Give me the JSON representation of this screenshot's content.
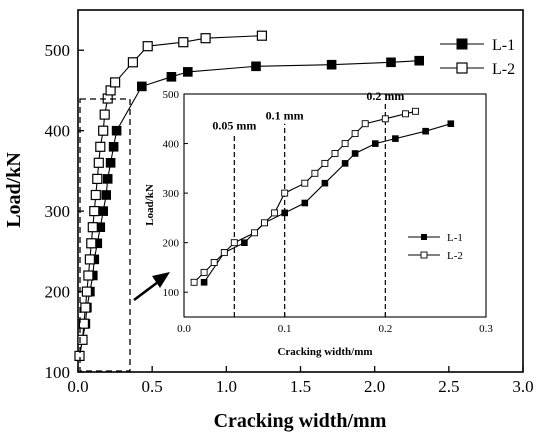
{
  "chart_data": [
    {
      "type": "line",
      "xlabel": "Cracking width/mm",
      "ylabel": "Load/kN",
      "xlim": [
        0.0,
        3.0
      ],
      "ylim": [
        100,
        550
      ],
      "x_ticks": [
        "0.0",
        "0.5",
        "1.0",
        "1.5",
        "2.0",
        "2.5",
        "3.0"
      ],
      "y_ticks": [
        "100",
        "200",
        "300",
        "400",
        "500"
      ],
      "legend_position": "top-right",
      "series": [
        {
          "name": "L-1",
          "marker": "filled-square",
          "x": [
            0.01,
            0.03,
            0.05,
            0.06,
            0.08,
            0.1,
            0.11,
            0.13,
            0.15,
            0.17,
            0.19,
            0.2,
            0.22,
            0.24,
            0.26,
            0.43,
            0.63,
            0.74,
            1.2,
            1.71,
            2.11,
            2.3
          ],
          "y": [
            120,
            140,
            160,
            180,
            200,
            220,
            240,
            260,
            280,
            300,
            320,
            340,
            360,
            380,
            400,
            455,
            467,
            473,
            480,
            482,
            485,
            487
          ]
        },
        {
          "name": "L-2",
          "marker": "open-square",
          "x": [
            0.01,
            0.03,
            0.04,
            0.05,
            0.06,
            0.07,
            0.08,
            0.09,
            0.1,
            0.11,
            0.12,
            0.13,
            0.14,
            0.15,
            0.17,
            0.18,
            0.2,
            0.22,
            0.25,
            0.37,
            0.47,
            0.71,
            0.86,
            1.24
          ],
          "y": [
            120,
            140,
            160,
            180,
            200,
            220,
            240,
            260,
            280,
            300,
            320,
            340,
            360,
            380,
            400,
            420,
            440,
            450,
            460,
            485,
            505,
            510,
            515,
            518
          ]
        }
      ]
    },
    {
      "type": "line",
      "xlabel": "Cracking width/mm",
      "ylabel": "Load/kN",
      "xlim": [
        0.0,
        0.3
      ],
      "ylim": [
        50,
        500
      ],
      "x_ticks": [
        "0.0",
        "0.1",
        "0.2",
        "0.3"
      ],
      "y_ticks": [
        "100",
        "200",
        "300",
        "400",
        "500"
      ],
      "legend_position": "bottom-right",
      "annotations": [
        "0.05 mm",
        "0.1 mm",
        "0.2 mm"
      ],
      "series": [
        {
          "name": "L-1",
          "marker": "filled-square",
          "x": [
            0.02,
            0.04,
            0.06,
            0.08,
            0.1,
            0.12,
            0.14,
            0.16,
            0.17,
            0.19,
            0.21,
            0.24,
            0.265
          ],
          "y": [
            120,
            180,
            200,
            240,
            260,
            280,
            320,
            360,
            380,
            400,
            410,
            425,
            440
          ]
        },
        {
          "name": "L-2",
          "marker": "open-square",
          "x": [
            0.01,
            0.02,
            0.03,
            0.04,
            0.05,
            0.07,
            0.08,
            0.09,
            0.1,
            0.12,
            0.13,
            0.14,
            0.15,
            0.16,
            0.17,
            0.18,
            0.2,
            0.22,
            0.23
          ],
          "y": [
            120,
            140,
            160,
            180,
            200,
            220,
            240,
            260,
            300,
            320,
            340,
            360,
            380,
            400,
            420,
            440,
            450,
            460,
            465
          ]
        }
      ],
      "reference_lines": [
        {
          "label": "0.05 mm",
          "x": 0.05,
          "y_top": 420
        },
        {
          "label": "0.1 mm",
          "x": 0.1,
          "y_top": 440
        },
        {
          "label": "0.2 mm",
          "x": 0.2,
          "y_top": 480
        }
      ]
    }
  ]
}
